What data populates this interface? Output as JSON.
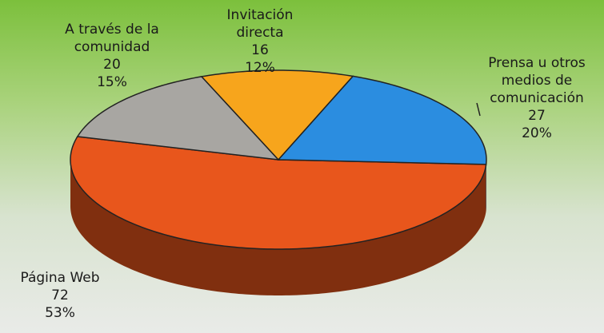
{
  "chart_data": {
    "type": "pie3d",
    "categories": [
      "Página Web",
      "A través de la comunidad",
      "Invitación directa",
      "Prensa u otros medios de comunicación"
    ],
    "values": [
      72,
      20,
      16,
      27
    ],
    "percent_labels": [
      "53%",
      "15%",
      "12%",
      "20%"
    ],
    "colors": [
      "#e8561c",
      "#a8a6a2",
      "#f7a51c",
      "#2b8de0"
    ]
  }
}
